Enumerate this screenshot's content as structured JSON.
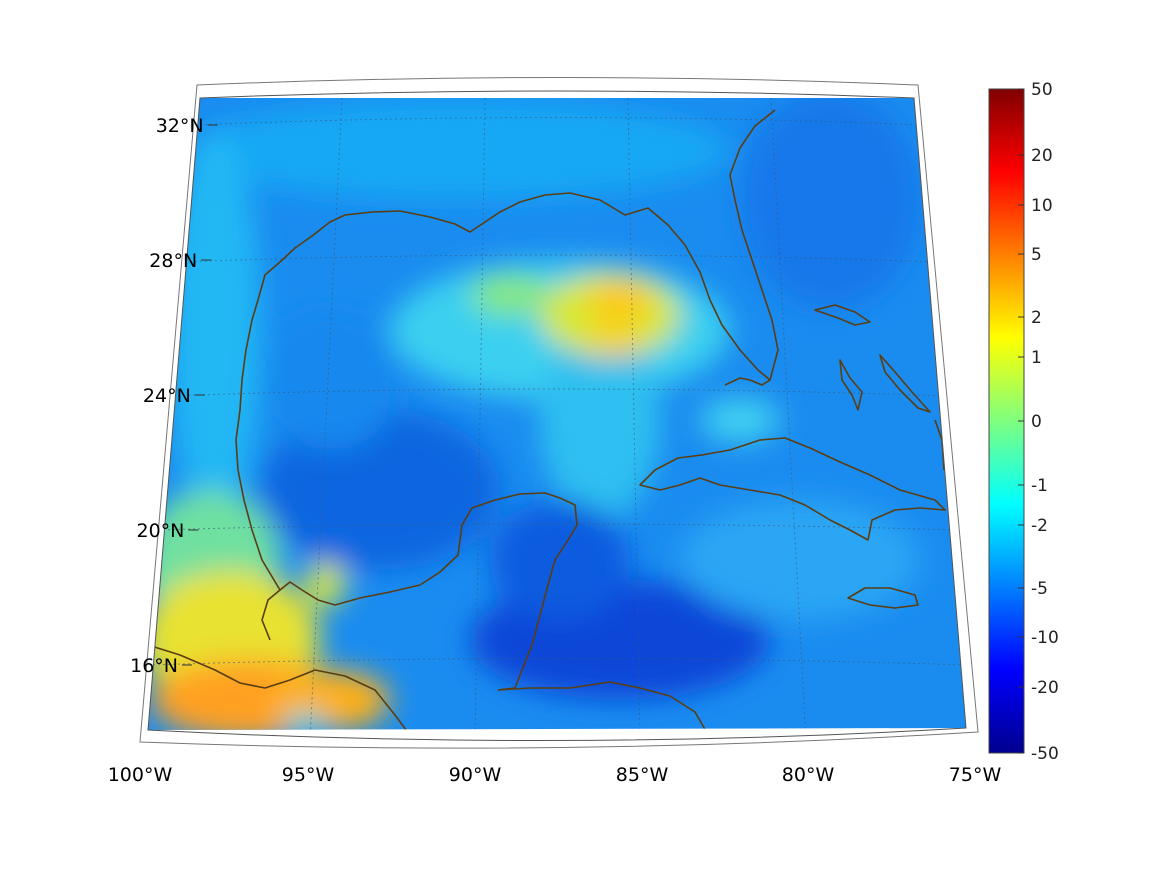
{
  "map": {
    "region": "Gulf of Mexico",
    "lon_range": [
      -100,
      -75
    ],
    "lat_range": [
      14,
      33
    ],
    "lat_ticks": [
      {
        "value": 32,
        "label": "32°N"
      },
      {
        "value": 28,
        "label": "28°N"
      },
      {
        "value": 24,
        "label": "24°N"
      },
      {
        "value": 20,
        "label": "20°N"
      },
      {
        "value": 16,
        "label": "16°N"
      }
    ],
    "lon_ticks": [
      {
        "value": -100,
        "label": "100°W"
      },
      {
        "value": -95,
        "label": "95°W"
      },
      {
        "value": -90,
        "label": "90°W"
      },
      {
        "value": -85,
        "label": "85°W"
      },
      {
        "value": -80,
        "label": "80°W"
      },
      {
        "value": -75,
        "label": "75°W"
      }
    ],
    "grid": true,
    "coastline_color": "#5a3d12"
  },
  "colorbar": {
    "colormap": "jet",
    "labels": [
      "50",
      "20",
      "10",
      "5",
      "2",
      "1",
      "0",
      "-1",
      "-2",
      "-5",
      "-10",
      "-20",
      "-50"
    ]
  },
  "features": [
    {
      "name": "yellow-warm-patch-central-gulf",
      "value": "2 to 5",
      "lat": 26.5,
      "lon": -86
    },
    {
      "name": "orange-warm-patch-southern-mexico",
      "value": "2 to 5",
      "lat": 15.5,
      "lon": -97
    },
    {
      "name": "dark-blue-patch-caribbean",
      "value": "-10",
      "lat": 16,
      "lon": -86
    }
  ]
}
